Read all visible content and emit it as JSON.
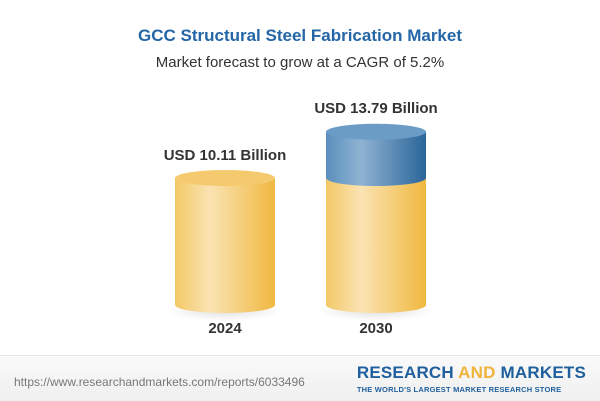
{
  "chart_data": {
    "type": "bar",
    "title": "GCC Structural Steel Fabrication Market",
    "subtitle": "Market forecast to grow at a CAGR of 5.2%",
    "categories": [
      "2024",
      "2030"
    ],
    "values": [
      10.11,
      13.79
    ],
    "data_labels": [
      "USD 10.11 Billion",
      "USD 13.79 Billion"
    ],
    "style": "3d-cylinder",
    "colors": {
      "base": "#f2c25a",
      "growth": "#3f7cae",
      "title": "#2466a6"
    }
  },
  "footer": {
    "url": "https://www.researchandmarkets.com/reports/6033496",
    "logo_part1": "RESEARCH ",
    "logo_part2": "AND",
    "logo_part3": " MARKETS",
    "tagline": "THE WORLD'S LARGEST MARKET RESEARCH STORE"
  }
}
